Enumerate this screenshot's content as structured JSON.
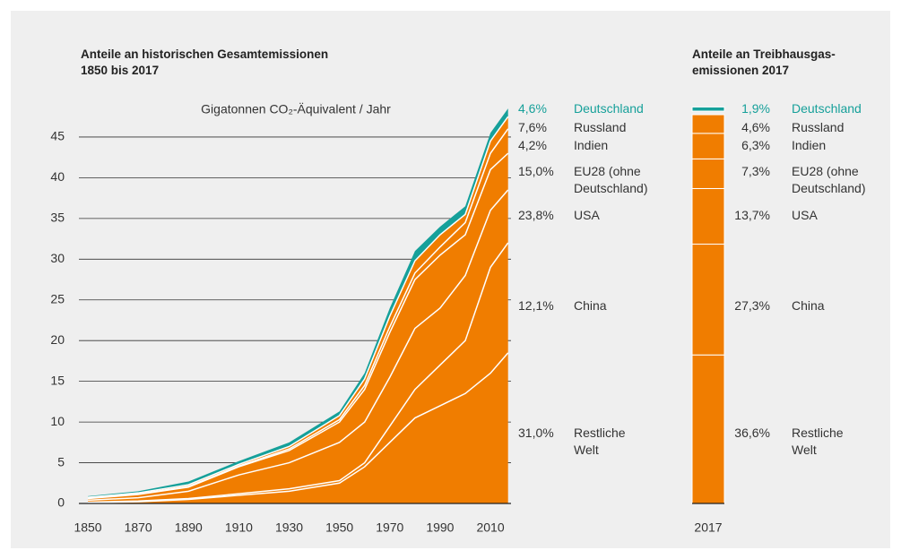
{
  "chart_data": [
    {
      "type": "area",
      "title": "Anteile an historischen Gesamtemissionen\n1850 bis 2017",
      "y_label": "Gigatonnen CO₂-Äquivalent / Jahr",
      "x": [
        1850,
        1870,
        1890,
        1910,
        1930,
        1950,
        1960,
        1970,
        1980,
        1990,
        2000,
        2010,
        2017
      ],
      "xlim": [
        1846,
        2018
      ],
      "xticks": [
        1850,
        1870,
        1890,
        1910,
        1930,
        1950,
        1970,
        1990,
        2010
      ],
      "ylim": [
        0,
        50
      ],
      "yticks": [
        0,
        5,
        10,
        15,
        20,
        25,
        30,
        35,
        40,
        45
      ],
      "grid": true,
      "series": [
        {
          "name": "Restliche\nWelt",
          "share": "31,0%",
          "color": "#f07d00",
          "values": [
            0.1,
            0.2,
            0.5,
            1,
            1.5,
            2.5,
            4.5,
            7.5,
            10.5,
            12,
            13.5,
            16,
            18.5
          ]
        },
        {
          "name": "China",
          "share": "12,1%",
          "color": "#f07d00",
          "values": [
            0.05,
            0.1,
            0.1,
            0.2,
            0.3,
            0.3,
            0.5,
            2,
            3.5,
            5,
            6.5,
            13,
            13.5
          ]
        },
        {
          "name": "USA",
          "share": "23,8%",
          "color": "#f07d00",
          "values": [
            0.25,
            0.4,
            0.9,
            2.3,
            3.2,
            4.7,
            5,
            6,
            7.5,
            7,
            8,
            7,
            6.5
          ]
        },
        {
          "name": "EU28 (ohne\nDeutschland)",
          "share": "15,0%",
          "color": "#f07d00",
          "values": [
            0.2,
            0.4,
            0.5,
            1,
            1.5,
            2.5,
            4,
            5.5,
            6,
            6.5,
            5,
            5,
            4.5
          ]
        },
        {
          "name": "Indien",
          "share": "4,2%",
          "color": "#f07d00",
          "values": [
            0.05,
            0.05,
            0.1,
            0.1,
            0.2,
            0.3,
            0.5,
            0.7,
            0.8,
            1,
            1.5,
            2,
            3
          ]
        },
        {
          "name": "Russland",
          "share": "7,6%",
          "color": "#f07d00",
          "values": [
            0.1,
            0.15,
            0.2,
            0.2,
            0.3,
            0.5,
            0.8,
            1.3,
            1.5,
            1.5,
            1,
            1.5,
            1.5
          ]
        },
        {
          "name": "Deutschland",
          "share": "4,6%",
          "color": "#16a09a",
          "values": [
            0.15,
            0.2,
            0.4,
            0.4,
            0.5,
            0.5,
            0.7,
            1,
            1.2,
            1,
            1,
            1,
            1
          ]
        }
      ]
    },
    {
      "type": "bar",
      "title": "Anteile an Treibhausgas-\nemissionen 2017",
      "categories": [
        "2017"
      ],
      "ylim": [
        0,
        100
      ],
      "series": [
        {
          "name": "Restliche\nWelt",
          "color": "#f07d00",
          "values": [
            36.6
          ],
          "value_labels": [
            "36,6%"
          ]
        },
        {
          "name": "China",
          "color": "#f07d00",
          "values": [
            27.3
          ],
          "value_labels": [
            "27,3%"
          ]
        },
        {
          "name": "USA",
          "color": "#f07d00",
          "values": [
            13.7
          ],
          "value_labels": [
            "13,7%"
          ]
        },
        {
          "name": "EU28 (ohne\nDeutschland)",
          "color": "#f07d00",
          "values": [
            7.3
          ],
          "value_labels": [
            "7,3%"
          ]
        },
        {
          "name": "Indien",
          "color": "#f07d00",
          "values": [
            6.3
          ],
          "value_labels": [
            "6,3%"
          ]
        },
        {
          "name": "Russland",
          "color": "#f07d00",
          "values": [
            4.6
          ],
          "value_labels": [
            "4,6%"
          ]
        },
        {
          "name": "Deutschland",
          "color": "#16a09a",
          "values": [
            1.9
          ],
          "value_labels": [
            "1,9%"
          ]
        }
      ]
    }
  ]
}
